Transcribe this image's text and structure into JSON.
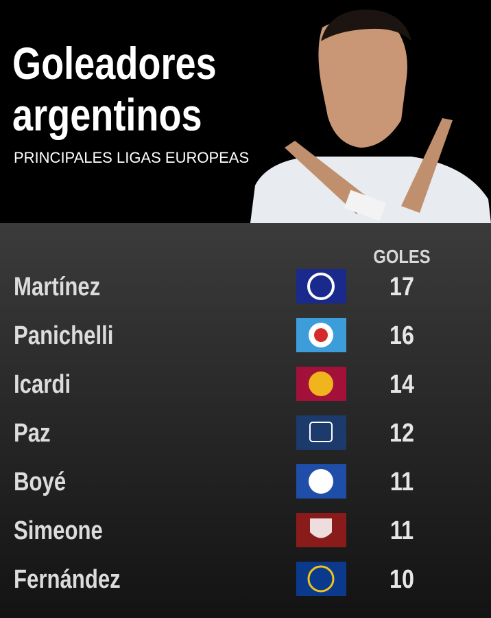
{
  "header": {
    "title_line1": "Goleadores",
    "title_line2": "argentinos",
    "subtitle": "PRINCIPALES LIGAS EUROPEAS"
  },
  "table": {
    "column_header": "GOLES",
    "rows": [
      [
        "Martínez",
        17
      ],
      [
        "Panichelli",
        16
      ],
      [
        "Icardi",
        14
      ],
      [
        "Paz",
        12
      ],
      [
        "Boyé",
        11
      ],
      [
        "Simeone",
        11
      ],
      [
        "Fernández",
        10
      ]
    ]
  }
}
